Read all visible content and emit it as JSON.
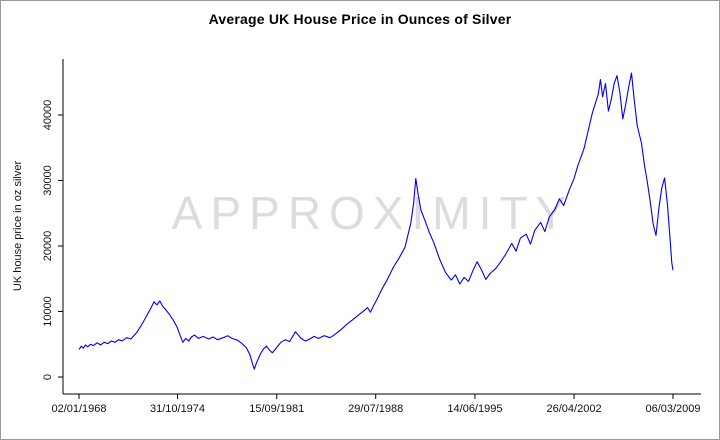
{
  "chart_data": {
    "type": "line",
    "title": "Average UK House Price in Ounces of Silver",
    "xlabel": "",
    "ylabel": "UK house price in oz silver",
    "watermark": "APPROXIMITY",
    "line_color": "#0000ee",
    "xlim": [
      1967.6,
      2009.6
    ],
    "ylim": [
      0,
      47000
    ],
    "grid": false,
    "legend": "none",
    "x_ticks": [
      {
        "pos": 1968.0,
        "label": "02/01/1968"
      },
      {
        "pos": 1974.83,
        "label": "31/10/1974"
      },
      {
        "pos": 1981.71,
        "label": "15/09/1981"
      },
      {
        "pos": 1988.57,
        "label": "29/07/1988"
      },
      {
        "pos": 1995.45,
        "label": "14/06/1995"
      },
      {
        "pos": 2002.32,
        "label": "26/04/2002"
      },
      {
        "pos": 2009.18,
        "label": "06/03/2009"
      }
    ],
    "y_ticks": [
      {
        "value": 0,
        "label": "0"
      },
      {
        "value": 10000,
        "label": "10000"
      },
      {
        "value": 20000,
        "label": "20000"
      },
      {
        "value": 30000,
        "label": "30000"
      },
      {
        "value": 40000,
        "label": "40000"
      }
    ],
    "series": [
      {
        "name": "UK house price in oz silver",
        "points": [
          [
            1968.0,
            4200
          ],
          [
            1968.15,
            4700
          ],
          [
            1968.3,
            4400
          ],
          [
            1968.45,
            4900
          ],
          [
            1968.6,
            4600
          ],
          [
            1968.8,
            5000
          ],
          [
            1969.0,
            4800
          ],
          [
            1969.25,
            5200
          ],
          [
            1969.5,
            4900
          ],
          [
            1969.75,
            5300
          ],
          [
            1970.0,
            5100
          ],
          [
            1970.25,
            5500
          ],
          [
            1970.5,
            5300
          ],
          [
            1970.75,
            5700
          ],
          [
            1971.0,
            5500
          ],
          [
            1971.3,
            6000
          ],
          [
            1971.6,
            5800
          ],
          [
            1972.0,
            6800
          ],
          [
            1972.3,
            7800
          ],
          [
            1972.6,
            9000
          ],
          [
            1973.0,
            10600
          ],
          [
            1973.2,
            11500
          ],
          [
            1973.4,
            11000
          ],
          [
            1973.6,
            11600
          ],
          [
            1973.8,
            10800
          ],
          [
            1974.0,
            10300
          ],
          [
            1974.25,
            9600
          ],
          [
            1974.5,
            8800
          ],
          [
            1974.8,
            7600
          ],
          [
            1975.0,
            6400
          ],
          [
            1975.2,
            5300
          ],
          [
            1975.4,
            5900
          ],
          [
            1975.6,
            5500
          ],
          [
            1975.8,
            6100
          ],
          [
            1976.0,
            6400
          ],
          [
            1976.3,
            5900
          ],
          [
            1976.6,
            6200
          ],
          [
            1977.0,
            5800
          ],
          [
            1977.3,
            6100
          ],
          [
            1977.6,
            5700
          ],
          [
            1978.0,
            6000
          ],
          [
            1978.3,
            6300
          ],
          [
            1978.6,
            5900
          ],
          [
            1979.0,
            5600
          ],
          [
            1979.3,
            5100
          ],
          [
            1979.6,
            4500
          ],
          [
            1979.85,
            3400
          ],
          [
            1980.05,
            1900
          ],
          [
            1980.15,
            1200
          ],
          [
            1980.3,
            2100
          ],
          [
            1980.45,
            2900
          ],
          [
            1980.6,
            3600
          ],
          [
            1980.8,
            4300
          ],
          [
            1981.0,
            4700
          ],
          [
            1981.2,
            4100
          ],
          [
            1981.4,
            3700
          ],
          [
            1981.6,
            4200
          ],
          [
            1981.8,
            4800
          ],
          [
            1982.0,
            5300
          ],
          [
            1982.3,
            5700
          ],
          [
            1982.6,
            5400
          ],
          [
            1983.0,
            6900
          ],
          [
            1983.2,
            6400
          ],
          [
            1983.4,
            5900
          ],
          [
            1983.7,
            5500
          ],
          [
            1984.0,
            5800
          ],
          [
            1984.3,
            6200
          ],
          [
            1984.6,
            5900
          ],
          [
            1985.0,
            6300
          ],
          [
            1985.4,
            6000
          ],
          [
            1985.8,
            6600
          ],
          [
            1986.2,
            7300
          ],
          [
            1986.6,
            8100
          ],
          [
            1987.0,
            8800
          ],
          [
            1987.4,
            9500
          ],
          [
            1987.8,
            10200
          ],
          [
            1988.0,
            10600
          ],
          [
            1988.2,
            9900
          ],
          [
            1988.4,
            10800
          ],
          [
            1988.6,
            11600
          ],
          [
            1989.0,
            13400
          ],
          [
            1989.4,
            15000
          ],
          [
            1989.8,
            16800
          ],
          [
            1990.2,
            18200
          ],
          [
            1990.6,
            19800
          ],
          [
            1991.0,
            23500
          ],
          [
            1991.2,
            26500
          ],
          [
            1991.35,
            30300
          ],
          [
            1991.5,
            28000
          ],
          [
            1991.7,
            25500
          ],
          [
            1992.0,
            23800
          ],
          [
            1992.3,
            22000
          ],
          [
            1992.6,
            20500
          ],
          [
            1993.0,
            18000
          ],
          [
            1993.4,
            16000
          ],
          [
            1993.8,
            14800
          ],
          [
            1994.1,
            15600
          ],
          [
            1994.4,
            14200
          ],
          [
            1994.7,
            15200
          ],
          [
            1995.0,
            14600
          ],
          [
            1995.3,
            16200
          ],
          [
            1995.6,
            17600
          ],
          [
            1995.9,
            16400
          ],
          [
            1996.2,
            14900
          ],
          [
            1996.5,
            15800
          ],
          [
            1996.9,
            16600
          ],
          [
            1997.2,
            17500
          ],
          [
            1997.6,
            18800
          ],
          [
            1998.0,
            20400
          ],
          [
            1998.3,
            19200
          ],
          [
            1998.6,
            21200
          ],
          [
            1999.0,
            21800
          ],
          [
            1999.3,
            20300
          ],
          [
            1999.6,
            22400
          ],
          [
            2000.0,
            23600
          ],
          [
            2000.3,
            22200
          ],
          [
            2000.6,
            24400
          ],
          [
            2001.0,
            25600
          ],
          [
            2001.3,
            27200
          ],
          [
            2001.6,
            26200
          ],
          [
            2002.0,
            28600
          ],
          [
            2002.3,
            30200
          ],
          [
            2002.6,
            32400
          ],
          [
            2003.0,
            34800
          ],
          [
            2003.3,
            37600
          ],
          [
            2003.6,
            40400
          ],
          [
            2004.0,
            43200
          ],
          [
            2004.15,
            45400
          ],
          [
            2004.3,
            42800
          ],
          [
            2004.5,
            44800
          ],
          [
            2004.7,
            40600
          ],
          [
            2004.9,
            42400
          ],
          [
            2005.1,
            44800
          ],
          [
            2005.3,
            46000
          ],
          [
            2005.5,
            43400
          ],
          [
            2005.7,
            39400
          ],
          [
            2005.9,
            41600
          ],
          [
            2006.1,
            44200
          ],
          [
            2006.3,
            46400
          ],
          [
            2006.5,
            42200
          ],
          [
            2006.7,
            38400
          ],
          [
            2007.0,
            35600
          ],
          [
            2007.2,
            32400
          ],
          [
            2007.4,
            29800
          ],
          [
            2007.6,
            26800
          ],
          [
            2007.8,
            23400
          ],
          [
            2008.0,
            21600
          ],
          [
            2008.2,
            25800
          ],
          [
            2008.4,
            28800
          ],
          [
            2008.6,
            30400
          ],
          [
            2008.8,
            26200
          ],
          [
            2009.0,
            20400
          ],
          [
            2009.1,
            17400
          ],
          [
            2009.18,
            16300
          ]
        ]
      }
    ]
  }
}
